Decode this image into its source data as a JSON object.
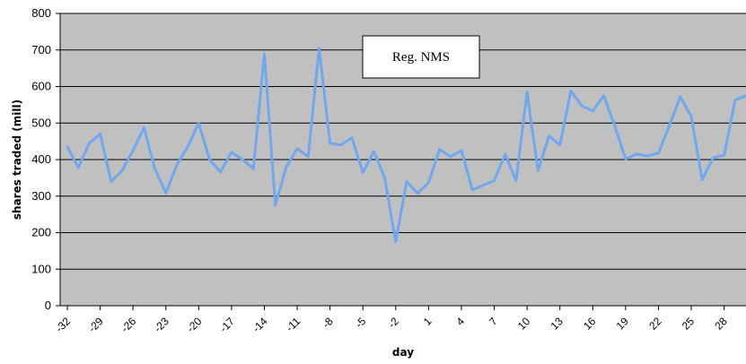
{
  "chart_data": {
    "type": "line",
    "xlabel": "day",
    "ylabel": "shares traded (mill)",
    "ylim": [
      0,
      800
    ],
    "xlim": [
      -32,
      30
    ],
    "y_ticks": [
      0,
      100,
      200,
      300,
      400,
      500,
      600,
      700,
      800
    ],
    "x_tick_labels": [
      "-32",
      "-29",
      "-26",
      "-23",
      "-20",
      "-17",
      "-14",
      "-11",
      "-8",
      "-5",
      "-2",
      "1",
      "4",
      "7",
      "10",
      "13",
      "16",
      "19",
      "22",
      "25",
      "28"
    ],
    "x_tick_values": [
      -32,
      -29,
      -26,
      -23,
      -20,
      -17,
      -14,
      -11,
      -8,
      -5,
      -2,
      1,
      4,
      7,
      10,
      13,
      16,
      19,
      22,
      25,
      28
    ],
    "grid": true,
    "background": "#c0c0c0",
    "legend_position": "top-center",
    "series": [
      {
        "name": "Reg. NMS",
        "color": "#6fa8f0",
        "x": [
          -32,
          -31,
          -30,
          -29,
          -28,
          -27,
          -26,
          -25,
          -24,
          -23,
          -22,
          -21,
          -20,
          -19,
          -18,
          -17,
          -16,
          -15,
          -14,
          -13,
          -12,
          -11,
          -10,
          -9,
          -8,
          -7,
          -6,
          -5,
          -4,
          -3,
          -2,
          -1,
          0,
          1,
          2,
          3,
          4,
          5,
          6,
          7,
          8,
          9,
          10,
          11,
          12,
          13,
          14,
          15,
          16,
          17,
          18,
          19,
          20,
          21,
          22,
          23,
          24,
          25,
          26,
          27,
          28,
          29,
          30
        ],
        "values": [
          435,
          378,
          445,
          470,
          340,
          370,
          425,
          487,
          375,
          308,
          385,
          435,
          500,
          400,
          366,
          420,
          400,
          375,
          690,
          275,
          380,
          430,
          408,
          705,
          445,
          440,
          460,
          365,
          422,
          350,
          175,
          340,
          308,
          337,
          428,
          408,
          425,
          317,
          330,
          342,
          415,
          342,
          585,
          370,
          465,
          440,
          588,
          547,
          533,
          575,
          493,
          402,
          415,
          410,
          418,
          493,
          572,
          518,
          345,
          405,
          412,
          563,
          575
        ]
      }
    ]
  }
}
